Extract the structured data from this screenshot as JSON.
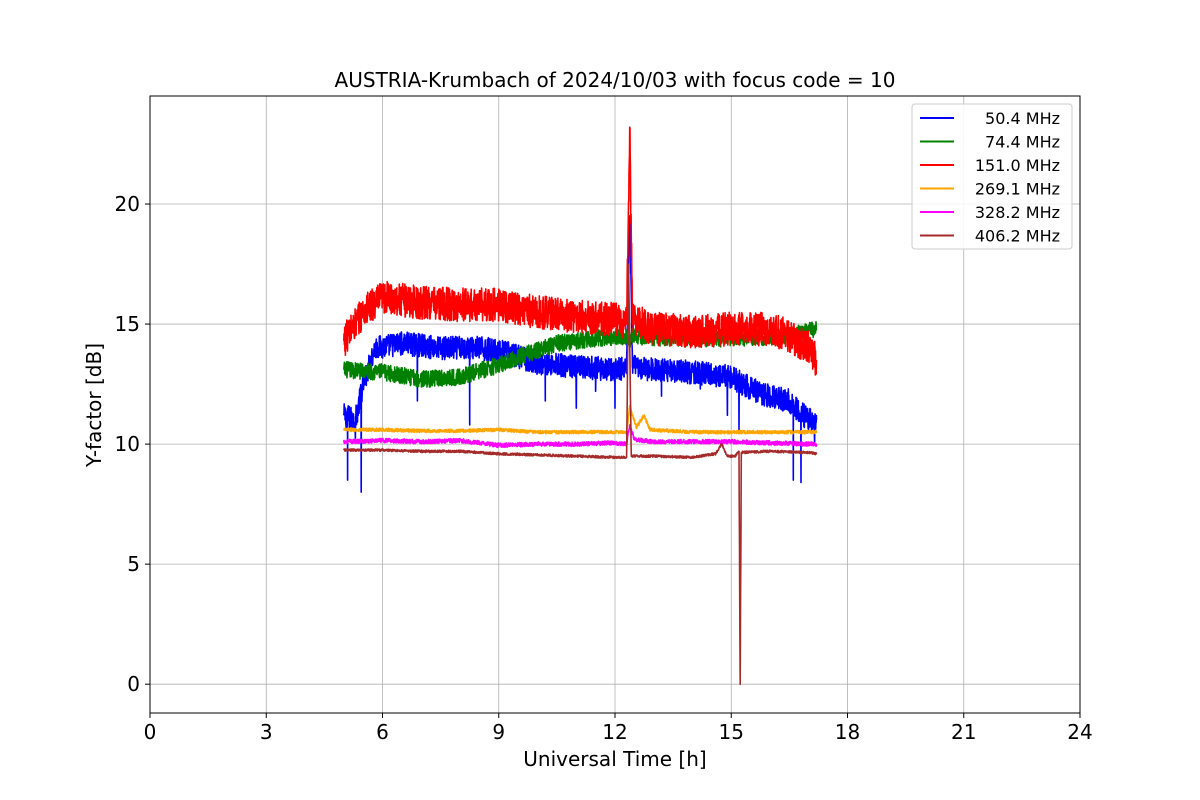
{
  "chart_data": {
    "type": "line",
    "title": "AUSTRIA-Krumbach of 2024/10/03 with focus code = 10",
    "xlabel": "Universal Time [h]",
    "ylabel": "Y-factor [dB]",
    "xlim": [
      0,
      24
    ],
    "ylim": [
      -1.2,
      24.5
    ],
    "xticks": [
      0,
      3,
      6,
      9,
      12,
      15,
      18,
      21,
      24
    ],
    "yticks": [
      0,
      5,
      10,
      15,
      20
    ],
    "grid": true,
    "legend_position": "top-right",
    "series": [
      {
        "name": "50.4 MHz",
        "color": "#0000ff",
        "noise": 0.5,
        "points": [
          [
            5.0,
            11.2
          ],
          [
            5.3,
            11.0
          ],
          [
            5.5,
            12.5
          ],
          [
            5.8,
            14.0
          ],
          [
            6.5,
            14.2
          ],
          [
            7.5,
            14.0
          ],
          [
            8.5,
            14.0
          ],
          [
            9.2,
            13.8
          ],
          [
            10.0,
            13.4
          ],
          [
            11.0,
            13.2
          ],
          [
            12.0,
            13.1
          ],
          [
            12.3,
            13.2
          ],
          [
            12.38,
            19.5
          ],
          [
            12.45,
            13.2
          ],
          [
            13.0,
            13.1
          ],
          [
            14.0,
            13.0
          ],
          [
            15.0,
            12.8
          ],
          [
            15.5,
            12.3
          ],
          [
            16.0,
            12.0
          ],
          [
            16.5,
            11.8
          ],
          [
            17.0,
            11.0
          ],
          [
            17.2,
            11.0
          ]
        ],
        "spikes": [
          [
            5.1,
            8.5
          ],
          [
            5.45,
            8.0
          ],
          [
            5.3,
            10.2
          ],
          [
            6.9,
            11.8
          ],
          [
            8.25,
            10.8
          ],
          [
            10.2,
            11.8
          ],
          [
            11.0,
            11.5
          ],
          [
            11.5,
            12.2
          ],
          [
            12.0,
            11.5
          ],
          [
            13.2,
            12.0
          ],
          [
            14.2,
            12.3
          ],
          [
            14.9,
            11.2
          ],
          [
            15.2,
            10.5
          ],
          [
            16.6,
            8.5
          ],
          [
            16.8,
            8.4
          ],
          [
            17.15,
            10.0
          ]
        ]
      },
      {
        "name": "74.4 MHz",
        "color": "#008000",
        "noise": 0.35,
        "points": [
          [
            5.0,
            13.1
          ],
          [
            6.0,
            13.0
          ],
          [
            7.0,
            12.7
          ],
          [
            8.0,
            12.8
          ],
          [
            9.0,
            13.3
          ],
          [
            9.8,
            13.8
          ],
          [
            10.5,
            14.2
          ],
          [
            11.5,
            14.4
          ],
          [
            12.3,
            14.5
          ],
          [
            12.38,
            14.2
          ],
          [
            12.45,
            14.5
          ],
          [
            13.5,
            14.4
          ],
          [
            15.0,
            14.4
          ],
          [
            16.5,
            14.5
          ],
          [
            17.2,
            14.8
          ]
        ],
        "spikes": []
      },
      {
        "name": "151.0 MHz",
        "color": "#ff0000",
        "noise": 0.7,
        "points": [
          [
            5.0,
            14.3
          ],
          [
            5.5,
            15.5
          ],
          [
            6.0,
            16.1
          ],
          [
            7.0,
            15.9
          ],
          [
            8.0,
            15.8
          ],
          [
            9.0,
            15.8
          ],
          [
            10.0,
            15.5
          ],
          [
            11.0,
            15.3
          ],
          [
            12.0,
            15.2
          ],
          [
            12.3,
            15.0
          ],
          [
            12.38,
            23.2
          ],
          [
            12.45,
            15.2
          ],
          [
            13.0,
            14.8
          ],
          [
            14.0,
            14.7
          ],
          [
            15.0,
            14.8
          ],
          [
            16.0,
            14.8
          ],
          [
            16.5,
            14.5
          ],
          [
            17.0,
            14.0
          ],
          [
            17.2,
            13.5
          ]
        ],
        "spikes": []
      },
      {
        "name": "269.1 MHz",
        "color": "#ffa500",
        "noise": 0.07,
        "points": [
          [
            5.0,
            10.6
          ],
          [
            6.0,
            10.6
          ],
          [
            7.0,
            10.55
          ],
          [
            8.0,
            10.55
          ],
          [
            9.0,
            10.6
          ],
          [
            10.0,
            10.5
          ],
          [
            11.0,
            10.5
          ],
          [
            12.0,
            10.5
          ],
          [
            12.3,
            10.5
          ],
          [
            12.38,
            11.6
          ],
          [
            12.55,
            10.7
          ],
          [
            12.75,
            11.2
          ],
          [
            12.9,
            10.6
          ],
          [
            14.0,
            10.5
          ],
          [
            15.0,
            10.5
          ],
          [
            16.0,
            10.5
          ],
          [
            17.2,
            10.5
          ]
        ],
        "spikes": []
      },
      {
        "name": "328.2 MHz",
        "color": "#ff00ff",
        "noise": 0.09,
        "points": [
          [
            5.0,
            10.1
          ],
          [
            6.0,
            10.15
          ],
          [
            7.0,
            10.1
          ],
          [
            8.0,
            10.15
          ],
          [
            9.0,
            9.95
          ],
          [
            10.0,
            10.0
          ],
          [
            11.0,
            10.0
          ],
          [
            12.0,
            10.05
          ],
          [
            12.3,
            10.0
          ],
          [
            12.38,
            10.8
          ],
          [
            12.5,
            10.2
          ],
          [
            13.0,
            10.1
          ],
          [
            14.0,
            10.1
          ],
          [
            15.0,
            10.1
          ],
          [
            16.0,
            10.05
          ],
          [
            17.2,
            10.0
          ]
        ],
        "spikes": []
      },
      {
        "name": "406.2 MHz",
        "color": "#a52a2a",
        "noise": 0.05,
        "points": [
          [
            5.0,
            9.75
          ],
          [
            6.0,
            9.75
          ],
          [
            7.0,
            9.7
          ],
          [
            8.0,
            9.7
          ],
          [
            9.0,
            9.6
          ],
          [
            10.0,
            9.55
          ],
          [
            11.0,
            9.5
          ],
          [
            12.0,
            9.45
          ],
          [
            12.3,
            9.45
          ],
          [
            12.35,
            17.5
          ],
          [
            12.42,
            9.5
          ],
          [
            13.0,
            9.5
          ],
          [
            14.0,
            9.45
          ],
          [
            14.6,
            9.6
          ],
          [
            14.75,
            10.0
          ],
          [
            14.9,
            9.5
          ],
          [
            15.1,
            9.5
          ],
          [
            15.2,
            9.7
          ],
          [
            15.23,
            0.0
          ],
          [
            15.26,
            9.65
          ],
          [
            16.0,
            9.7
          ],
          [
            17.0,
            9.65
          ],
          [
            17.2,
            9.6
          ]
        ],
        "spikes": []
      }
    ]
  }
}
